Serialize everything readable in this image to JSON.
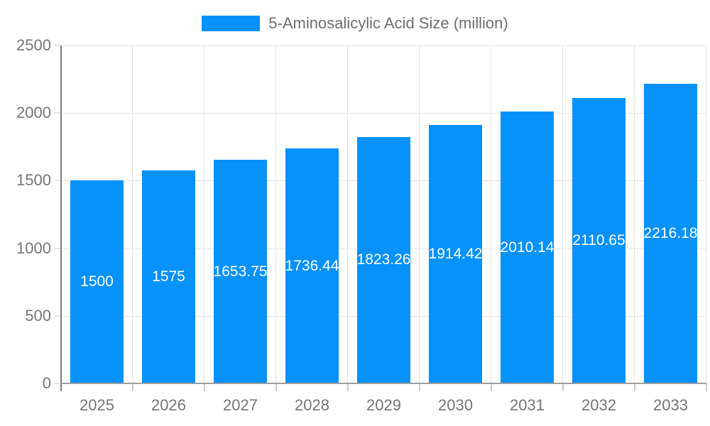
{
  "legend": {
    "label": "5-Aminosalicylic Acid Size (million)"
  },
  "colors": {
    "bar": "#0691fb",
    "grid": "#e3e3e3",
    "axis_line_y": "#7b7b7b",
    "axis_line_x": "#9e9e9e",
    "tick_text": "#757575",
    "legend_text": "#6e6e6e",
    "bar_label_text": "#ffffff",
    "background": "#ffffff"
  },
  "chart_data": {
    "type": "bar",
    "title": "",
    "legend_entries": [
      "5-Aminosalicylic Acid Size (million)"
    ],
    "legend_position": "top",
    "categories": [
      "2025",
      "2026",
      "2027",
      "2028",
      "2029",
      "2030",
      "2031",
      "2032",
      "2033"
    ],
    "series": [
      {
        "name": "5-Aminosalicylic Acid Size (million)",
        "values": [
          1500,
          1575,
          1653.75,
          1736.44,
          1823.26,
          1914.42,
          2010.14,
          2110.65,
          2216.18
        ]
      }
    ],
    "bar_value_labels": [
      "1500",
      "1575",
      "1653.75",
      "1736.44",
      "1823.26",
      "1914.42",
      "2010.14",
      "2110.65",
      "2216.18"
    ],
    "xlabel": "",
    "ylabel": "",
    "ylim": [
      0,
      2500
    ],
    "yticks": [
      0,
      500,
      1000,
      1500,
      2000,
      2500
    ],
    "grid": true
  }
}
